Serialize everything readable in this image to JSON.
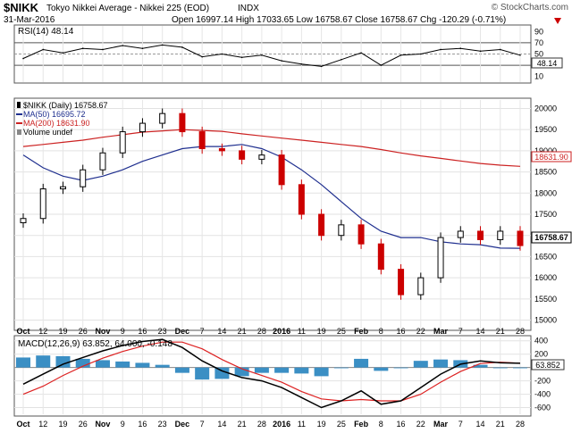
{
  "header": {
    "symbol": "$NIKK",
    "name": "Tokyo Nikkei Average - Nikkei 225 (EOD)",
    "exchange": "INDX",
    "watermark": "© StockCharts.com",
    "date": "31-Mar-2016",
    "ohlc": "Open 16997.14  High 17033.65  Low 16758.67  Close 16758.67  Chg -120.29 (-0.71%)",
    "chg_color": "#cc0000",
    "down_arrow_color": "#cc0000"
  },
  "rsi": {
    "label": "RSI(14) 48.14",
    "value_badge": "48.14",
    "ticks": [
      "90",
      "70",
      "50",
      "30",
      "10"
    ]
  },
  "price": {
    "legend": [
      {
        "text": "$NIKK (Daily) 16758.67",
        "color": "#000000",
        "icon": "candlestick-icon"
      },
      {
        "text": "MA(50) 16695.72",
        "color": "#1f2f8f",
        "icon": "line-icon"
      },
      {
        "text": "MA(200) 18631.90",
        "color": "#cc2222",
        "icon": "line-icon"
      },
      {
        "text": "Volume undef",
        "color": "#000000",
        "icon": "volume-icon"
      }
    ],
    "badges": {
      "ma200": "18631.90",
      "close": "16758.67"
    },
    "ticks": [
      "20000",
      "19500",
      "19000",
      "18500",
      "18000",
      "17500",
      "17000",
      "16500",
      "16000",
      "15500",
      "15000"
    ]
  },
  "macd": {
    "label": "MACD(12,26,9) 63.852, 64.000, -0.148",
    "value_badge": "63.852",
    "ticks": [
      "400",
      "200",
      "0",
      "-200",
      "-400",
      "-600"
    ]
  },
  "x_axis": {
    "labels": [
      "Oct",
      "12",
      "19",
      "26",
      "Nov",
      "9",
      "16",
      "23",
      "Dec",
      "7",
      "14",
      "21",
      "28",
      "2016",
      "11",
      "19",
      "25",
      "Feb",
      "8",
      "16",
      "22",
      "Mar",
      "7",
      "14",
      "21",
      "28"
    ]
  },
  "colors": {
    "up": "#000000",
    "down": "#cc0000",
    "ma50": "#1f2f8f",
    "ma200": "#cc2222",
    "hist": "#3b8fc4",
    "signal": "#dd2222"
  },
  "chart_data": [
    {
      "type": "line",
      "title": "RSI(14) 48.14",
      "ylim": [
        0,
        100
      ],
      "x": [
        "Oct",
        "12",
        "19",
        "26",
        "Nov",
        "9",
        "16",
        "23",
        "Dec",
        "7",
        "14",
        "21",
        "28",
        "2016",
        "11",
        "19",
        "25",
        "Feb",
        "8",
        "16",
        "22",
        "Mar",
        "7",
        "14",
        "21",
        "28"
      ],
      "series": [
        {
          "name": "RSI(14)",
          "values": [
            42,
            58,
            52,
            60,
            58,
            65,
            60,
            66,
            62,
            45,
            50,
            44,
            48,
            38,
            32,
            28,
            40,
            52,
            30,
            48,
            50,
            58,
            60,
            55,
            58,
            48
          ]
        }
      ]
    },
    {
      "type": "line",
      "title": "$NIKK (Daily) 16758.67",
      "ylim": [
        14800,
        20200
      ],
      "x": [
        "Oct",
        "12",
        "19",
        "26",
        "Nov",
        "9",
        "16",
        "23",
        "Dec",
        "7",
        "14",
        "21",
        "28",
        "2016",
        "11",
        "19",
        "25",
        "Feb",
        "8",
        "16",
        "22",
        "Mar",
        "7",
        "14",
        "21",
        "28"
      ],
      "series": [
        {
          "name": "$NIKK (Daily)",
          "values": [
            17400,
            18100,
            18150,
            18550,
            18950,
            19450,
            19650,
            19880,
            19450,
            19050,
            19000,
            18800,
            18900,
            18200,
            17500,
            17000,
            17250,
            16800,
            16200,
            15600,
            16000,
            16950,
            17100,
            16900,
            17100,
            16760
          ]
        },
        {
          "name": "MA(50)",
          "values": [
            18900,
            18600,
            18400,
            18300,
            18400,
            18550,
            18750,
            18900,
            19050,
            19100,
            19100,
            19150,
            19050,
            18850,
            18550,
            18200,
            17800,
            17400,
            17100,
            16950,
            16950,
            16850,
            16800,
            16780,
            16700,
            16696
          ]
        },
        {
          "name": "MA(200)",
          "values": [
            19100,
            19150,
            19200,
            19250,
            19320,
            19380,
            19440,
            19470,
            19500,
            19480,
            19460,
            19400,
            19350,
            19300,
            19250,
            19200,
            19150,
            19100,
            19030,
            18950,
            18880,
            18820,
            18760,
            18700,
            18660,
            18632
          ]
        }
      ]
    },
    {
      "type": "bar",
      "title": "MACD(12,26,9) 63.852, 64.000, -0.148",
      "ylim": [
        -700,
        450
      ],
      "x": [
        "Oct",
        "12",
        "19",
        "26",
        "Nov",
        "9",
        "16",
        "23",
        "Dec",
        "7",
        "14",
        "21",
        "28",
        "2016",
        "11",
        "19",
        "25",
        "Feb",
        "8",
        "16",
        "22",
        "Mar",
        "7",
        "14",
        "21",
        "28"
      ],
      "series": [
        {
          "name": "MACD(12,26,9)",
          "values": [
            -250,
            -100,
            50,
            150,
            250,
            330,
            390,
            420,
            300,
            100,
            -50,
            -150,
            -200,
            -300,
            -450,
            -600,
            -500,
            -350,
            -550,
            -500,
            -300,
            -100,
            50,
            100,
            70,
            64
          ]
        },
        {
          "name": "Signal",
          "values": [
            -400,
            -280,
            -120,
            20,
            140,
            240,
            320,
            380,
            380,
            280,
            120,
            -20,
            -120,
            -220,
            -360,
            -470,
            -500,
            -480,
            -500,
            -500,
            -400,
            -220,
            -60,
            60,
            80,
            64
          ]
        },
        {
          "name": "Histogram",
          "values": [
            150,
            180,
            170,
            130,
            110,
            90,
            70,
            40,
            -80,
            -180,
            -170,
            -130,
            -80,
            -80,
            -90,
            -130,
            0,
            130,
            -50,
            0,
            100,
            120,
            110,
            40,
            -10,
            -0.148
          ]
        }
      ]
    }
  ]
}
